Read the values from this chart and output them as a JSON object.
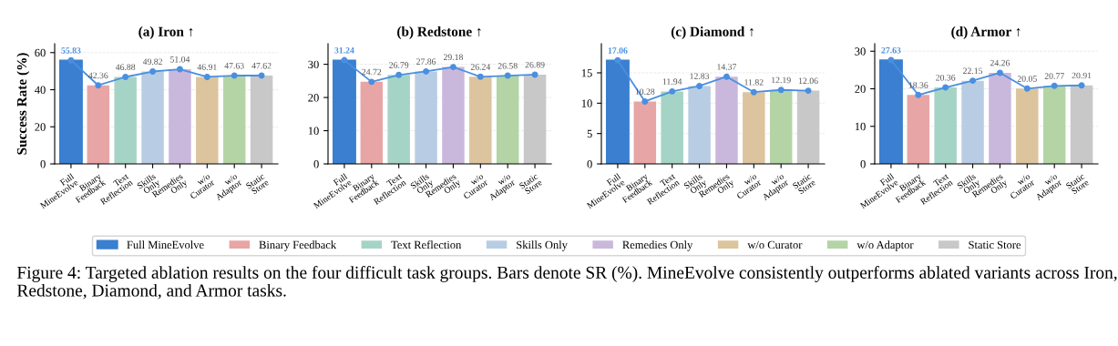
{
  "chart_data": [
    {
      "type": "bar",
      "title": "(a) Iron ↑",
      "ylabel": "Success Rate (%)",
      "categories": [
        "Full MineEvolve",
        "Binary Feedback",
        "Text Reflection",
        "Skills Only",
        "Remedies Only",
        "w/o Curator",
        "w/o Adaptor",
        "Static Store"
      ],
      "series": [
        {
          "name": "Full MineEvolve",
          "color": "#3a7fd0",
          "values": [
            55.83,
            null,
            null,
            null,
            null,
            null,
            null,
            null
          ],
          "value_labels": [
            "55.83",
            null,
            null,
            null,
            null,
            null,
            null,
            null
          ]
        },
        {
          "name": "Binary Feedback",
          "color": "#e8a5a5",
          "values": [
            null,
            42.36,
            null,
            null,
            null,
            null,
            null,
            null
          ],
          "value_labels": [
            null,
            "42.36",
            null,
            null,
            null,
            null,
            null,
            null
          ]
        },
        {
          "name": "Text Reflection",
          "color": "#a5d4c6",
          "values": [
            null,
            null,
            46.88,
            null,
            null,
            null,
            null,
            null
          ],
          "value_labels": [
            null,
            null,
            "46.88",
            null,
            null,
            null,
            null,
            null
          ]
        },
        {
          "name": "Skills Only",
          "color": "#b8cde3",
          "values": [
            null,
            null,
            null,
            49.82,
            null,
            null,
            null,
            null
          ],
          "value_labels": [
            null,
            null,
            null,
            "49.82",
            null,
            null,
            null,
            null
          ]
        },
        {
          "name": "Remedies Only",
          "color": "#c9b8dc",
          "values": [
            null,
            null,
            null,
            null,
            51.04,
            null,
            null,
            null
          ],
          "value_labels": [
            null,
            null,
            null,
            null,
            "51.04",
            null,
            null,
            null
          ]
        },
        {
          "name": "w/o Curator",
          "color": "#dcc49e",
          "values": [
            null,
            null,
            null,
            null,
            null,
            46.91,
            null,
            null
          ],
          "value_labels": [
            null,
            null,
            null,
            null,
            null,
            "46.91",
            null,
            null
          ]
        },
        {
          "name": "w/o Adaptor",
          "color": "#b4d4a6",
          "values": [
            null,
            null,
            null,
            null,
            null,
            null,
            47.63,
            null
          ],
          "value_labels": [
            null,
            null,
            null,
            null,
            null,
            null,
            "47.63",
            null
          ]
        },
        {
          "name": "Static Store",
          "color": "#c8c8c8",
          "values": [
            null,
            null,
            null,
            null,
            null,
            null,
            null,
            47.62
          ],
          "value_labels": [
            null,
            null,
            null,
            null,
            null,
            null,
            null,
            "47.62"
          ]
        },
        {
          "type": "line",
          "color": "#4a8fe0",
          "marker": "circle",
          "values": [
            55.83,
            42.36,
            46.88,
            49.82,
            51.04,
            46.91,
            47.63,
            47.62
          ]
        }
      ],
      "ylim": [
        0,
        64.8
      ],
      "yticks": [
        0,
        20,
        40,
        60
      ],
      "grid": "y",
      "legend": "bottom"
    },
    {
      "type": "bar",
      "title": "(b) Redstone ↑",
      "categories": [
        "Full MineEvolve",
        "Binary Feedback",
        "Text Reflection",
        "Skills Only",
        "Remedies Only",
        "w/o Curator",
        "w/o Adaptor",
        "Static Store"
      ],
      "series": [
        {
          "color": "#3a7fd0",
          "values": [
            31.24,
            null,
            null,
            null,
            null,
            null,
            null,
            null
          ],
          "value_labels": [
            "31.24",
            null,
            null,
            null,
            null,
            null,
            null,
            null
          ]
        },
        {
          "color": "#e8a5a5",
          "values": [
            null,
            24.72,
            null,
            null,
            null,
            null,
            null,
            null
          ],
          "value_labels": [
            null,
            "24.72",
            null,
            null,
            null,
            null,
            null,
            null
          ]
        },
        {
          "color": "#a5d4c6",
          "values": [
            null,
            null,
            26.79,
            null,
            null,
            null,
            null,
            null
          ],
          "value_labels": [
            null,
            null,
            "26.79",
            null,
            null,
            null,
            null,
            null
          ]
        },
        {
          "color": "#b8cde3",
          "values": [
            null,
            null,
            null,
            27.86,
            null,
            null,
            null,
            null
          ],
          "value_labels": [
            null,
            null,
            null,
            "27.86",
            null,
            null,
            null,
            null
          ]
        },
        {
          "color": "#c9b8dc",
          "values": [
            null,
            null,
            null,
            null,
            29.18,
            null,
            null,
            null
          ],
          "value_labels": [
            null,
            null,
            null,
            null,
            "29.18",
            null,
            null,
            null
          ]
        },
        {
          "color": "#dcc49e",
          "values": [
            null,
            null,
            null,
            null,
            null,
            26.24,
            null,
            null
          ],
          "value_labels": [
            null,
            null,
            null,
            null,
            null,
            "26.24",
            null,
            null
          ]
        },
        {
          "color": "#b4d4a6",
          "values": [
            null,
            null,
            null,
            null,
            null,
            null,
            26.58,
            null
          ],
          "value_labels": [
            null,
            null,
            null,
            null,
            null,
            null,
            "26.58",
            null
          ]
        },
        {
          "color": "#c8c8c8",
          "values": [
            null,
            null,
            null,
            null,
            null,
            null,
            null,
            26.89
          ],
          "value_labels": [
            null,
            null,
            null,
            null,
            null,
            null,
            null,
            "26.89"
          ]
        },
        {
          "type": "line",
          "color": "#4a8fe0",
          "marker": "circle",
          "values": [
            31.24,
            24.72,
            26.79,
            27.86,
            29.18,
            26.24,
            26.58,
            26.89
          ]
        }
      ],
      "ylim": [
        0,
        36.2
      ],
      "yticks": [
        0,
        10,
        20,
        30
      ],
      "grid": "y"
    },
    {
      "type": "bar",
      "title": "(c) Diamond ↑",
      "categories": [
        "Full MineEvolve",
        "Binary Feedback",
        "Text Reflection",
        "Skills Only",
        "Remedies Only",
        "w/o Curator",
        "w/o Adaptor",
        "Static Store"
      ],
      "series": [
        {
          "color": "#3a7fd0",
          "values": [
            17.06,
            null,
            null,
            null,
            null,
            null,
            null,
            null
          ],
          "value_labels": [
            "17.06",
            null,
            null,
            null,
            null,
            null,
            null,
            null
          ]
        },
        {
          "color": "#e8a5a5",
          "values": [
            null,
            10.28,
            null,
            null,
            null,
            null,
            null,
            null
          ],
          "value_labels": [
            null,
            "10.28",
            null,
            null,
            null,
            null,
            null,
            null
          ]
        },
        {
          "color": "#a5d4c6",
          "values": [
            null,
            null,
            11.94,
            null,
            null,
            null,
            null,
            null
          ],
          "value_labels": [
            null,
            null,
            "11.94",
            null,
            null,
            null,
            null,
            null
          ]
        },
        {
          "color": "#b8cde3",
          "values": [
            null,
            null,
            null,
            12.83,
            null,
            null,
            null,
            null
          ],
          "value_labels": [
            null,
            null,
            null,
            "12.83",
            null,
            null,
            null,
            null
          ]
        },
        {
          "color": "#c9b8dc",
          "values": [
            null,
            null,
            null,
            null,
            14.37,
            null,
            null,
            null
          ],
          "value_labels": [
            null,
            null,
            null,
            null,
            "14.37",
            null,
            null,
            null
          ]
        },
        {
          "color": "#dcc49e",
          "values": [
            null,
            null,
            null,
            null,
            null,
            11.82,
            null,
            null
          ],
          "value_labels": [
            null,
            null,
            null,
            null,
            null,
            "11.82",
            null,
            null
          ]
        },
        {
          "color": "#b4d4a6",
          "values": [
            null,
            null,
            null,
            null,
            null,
            null,
            12.19,
            null
          ],
          "value_labels": [
            null,
            null,
            null,
            null,
            null,
            null,
            "12.19",
            null
          ]
        },
        {
          "color": "#c8c8c8",
          "values": [
            null,
            null,
            null,
            null,
            null,
            null,
            null,
            12.06
          ],
          "value_labels": [
            null,
            null,
            null,
            null,
            null,
            null,
            null,
            "12.06"
          ]
        },
        {
          "type": "line",
          "color": "#4a8fe0",
          "marker": "circle",
          "values": [
            17.06,
            10.28,
            11.94,
            12.83,
            14.37,
            11.82,
            12.19,
            12.06
          ]
        }
      ],
      "ylim": [
        0,
        19.8
      ],
      "yticks": [
        0,
        5,
        10,
        15
      ],
      "grid": "y"
    },
    {
      "type": "bar",
      "title": "(d) Armor ↑",
      "categories": [
        "Full MineEvolve",
        "Binary Feedback",
        "Text Reflection",
        "Skills Only",
        "Remedies Only",
        "w/o Curator",
        "w/o Adaptor",
        "Static Store"
      ],
      "series": [
        {
          "color": "#3a7fd0",
          "values": [
            27.63,
            null,
            null,
            null,
            null,
            null,
            null,
            null
          ],
          "value_labels": [
            "27.63",
            null,
            null,
            null,
            null,
            null,
            null,
            null
          ]
        },
        {
          "color": "#e8a5a5",
          "values": [
            null,
            18.36,
            null,
            null,
            null,
            null,
            null,
            null
          ],
          "value_labels": [
            null,
            "18.36",
            null,
            null,
            null,
            null,
            null,
            null
          ]
        },
        {
          "color": "#a5d4c6",
          "values": [
            null,
            null,
            20.36,
            null,
            null,
            null,
            null,
            null
          ],
          "value_labels": [
            null,
            null,
            "20.36",
            null,
            null,
            null,
            null,
            null
          ]
        },
        {
          "color": "#b8cde3",
          "values": [
            null,
            null,
            null,
            22.15,
            null,
            null,
            null,
            null
          ],
          "value_labels": [
            null,
            null,
            null,
            "22.15",
            null,
            null,
            null,
            null
          ]
        },
        {
          "color": "#c9b8dc",
          "values": [
            null,
            null,
            null,
            null,
            24.26,
            null,
            null,
            null
          ],
          "value_labels": [
            null,
            null,
            null,
            null,
            "24.26",
            null,
            null,
            null
          ]
        },
        {
          "color": "#dcc49e",
          "values": [
            null,
            null,
            null,
            null,
            null,
            20.05,
            null,
            null
          ],
          "value_labels": [
            null,
            null,
            null,
            null,
            null,
            "20.05",
            null,
            null
          ]
        },
        {
          "color": "#b4d4a6",
          "values": [
            null,
            null,
            null,
            null,
            null,
            null,
            20.77,
            null
          ],
          "value_labels": [
            null,
            null,
            null,
            null,
            null,
            null,
            "20.77",
            null
          ]
        },
        {
          "color": "#c8c8c8",
          "values": [
            null,
            null,
            null,
            null,
            null,
            null,
            null,
            20.91
          ],
          "value_labels": [
            null,
            null,
            null,
            null,
            null,
            null,
            null,
            "20.91"
          ]
        },
        {
          "type": "line",
          "color": "#4a8fe0",
          "marker": "circle",
          "values": [
            27.63,
            18.36,
            20.36,
            22.15,
            24.26,
            20.05,
            20.77,
            20.91
          ]
        }
      ],
      "ylim": [
        0,
        32.0
      ],
      "yticks": [
        0,
        10,
        20,
        30
      ],
      "grid": "y",
      "annotations": [
        "Figure 4: Targeted ablation results on the four difficult task groups. Bars denote SR (%). MineEvolve consistently outperforms ablated variants across Iron, Redstone, Diamond, and Armor tasks."
      ]
    }
  ]
}
